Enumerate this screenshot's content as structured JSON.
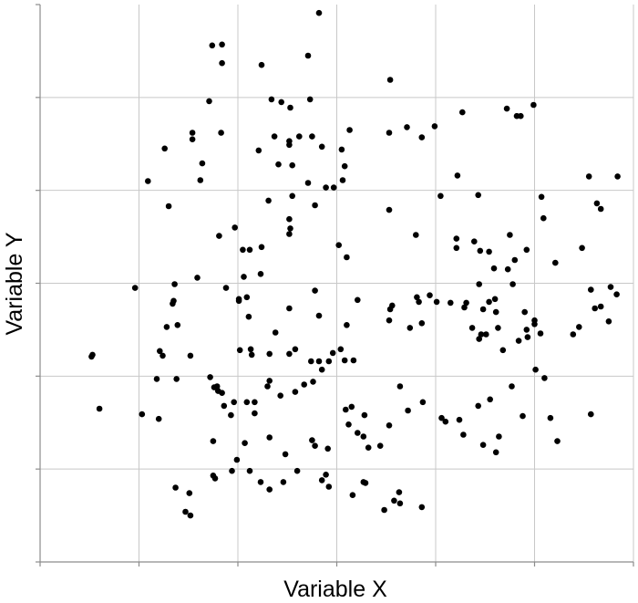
{
  "chart_data": {
    "type": "scatter",
    "title": "",
    "xlabel": "Variable X",
    "ylabel": "Variable Y",
    "xlim": [
      0,
      6
    ],
    "ylim": [
      0,
      6
    ],
    "grid": true,
    "tick_labels": false,
    "colors": {
      "point": "#000000",
      "grid": "#c8c8c8",
      "axis": "#8c8c8c"
    },
    "points": [
      [
        2.82,
        5.91
      ],
      [
        1.74,
        5.56
      ],
      [
        1.84,
        5.57
      ],
      [
        1.84,
        5.37
      ],
      [
        2.71,
        5.45
      ],
      [
        2.24,
        5.35
      ],
      [
        3.54,
        5.19
      ],
      [
        2.34,
        4.98
      ],
      [
        1.71,
        4.96
      ],
      [
        2.53,
        4.89
      ],
      [
        2.44,
        4.95
      ],
      [
        2.73,
        4.98
      ],
      [
        1.83,
        4.62
      ],
      [
        1.54,
        4.62
      ],
      [
        2.37,
        4.58
      ],
      [
        2.52,
        4.53
      ],
      [
        2.62,
        4.58
      ],
      [
        2.75,
        4.58
      ],
      [
        2.85,
        4.47
      ],
      [
        3.13,
        4.65
      ],
      [
        3.53,
        4.62
      ],
      [
        3.71,
        4.68
      ],
      [
        3.86,
        4.57
      ],
      [
        3.99,
        4.69
      ],
      [
        4.27,
        4.84
      ],
      [
        4.72,
        4.88
      ],
      [
        4.82,
        4.8
      ],
      [
        4.86,
        4.8
      ],
      [
        4.99,
        4.92
      ],
      [
        1.26,
        4.45
      ],
      [
        1.54,
        4.55
      ],
      [
        2.21,
        4.43
      ],
      [
        2.52,
        4.49
      ],
      [
        3.05,
        4.44
      ],
      [
        2.41,
        4.28
      ],
      [
        2.55,
        4.27
      ],
      [
        1.09,
        4.1
      ],
      [
        1.64,
        4.29
      ],
      [
        1.62,
        4.11
      ],
      [
        2.71,
        4.08
      ],
      [
        2.97,
        4.03
      ],
      [
        3.08,
        4.26
      ],
      [
        3.06,
        4.11
      ],
      [
        2.31,
        3.89
      ],
      [
        2.55,
        3.94
      ],
      [
        2.78,
        3.84
      ],
      [
        2.89,
        4.03
      ],
      [
        4.05,
        3.94
      ],
      [
        4.22,
        4.16
      ],
      [
        4.43,
        3.95
      ],
      [
        5.07,
        3.93
      ],
      [
        5.55,
        4.15
      ],
      [
        5.84,
        4.15
      ],
      [
        1.3,
        3.83
      ],
      [
        2.52,
        3.69
      ],
      [
        3.53,
        3.79
      ],
      [
        5.09,
        3.7
      ],
      [
        5.63,
        3.86
      ],
      [
        5.67,
        3.8
      ],
      [
        1.97,
        3.6
      ],
      [
        2.05,
        3.36
      ],
      [
        2.12,
        3.36
      ],
      [
        2.24,
        3.39
      ],
      [
        2.53,
        3.59
      ],
      [
        2.52,
        3.53
      ],
      [
        1.81,
        3.51
      ],
      [
        2.06,
        3.07
      ],
      [
        3.8,
        3.52
      ],
      [
        4.21,
        3.48
      ],
      [
        4.39,
        3.45
      ],
      [
        4.45,
        3.35
      ],
      [
        4.75,
        3.52
      ],
      [
        4.92,
        3.36
      ],
      [
        5.48,
        3.38
      ],
      [
        3.02,
        3.41
      ],
      [
        3.1,
        3.28
      ],
      [
        4.21,
        3.38
      ],
      [
        4.54,
        3.34
      ],
      [
        4.59,
        3.16
      ],
      [
        4.8,
        3.25
      ],
      [
        5.21,
        3.22
      ],
      [
        4.73,
        3.15
      ],
      [
        2.23,
        3.1
      ],
      [
        1.36,
        2.99
      ],
      [
        1.59,
        3.06
      ],
      [
        3.21,
        2.82
      ],
      [
        3.94,
        2.87
      ],
      [
        4.44,
        2.99
      ],
      [
        4.78,
        2.99
      ],
      [
        1.88,
        2.95
      ],
      [
        2.01,
        2.83
      ],
      [
        2.01,
        2.81
      ],
      [
        2.52,
        2.73
      ],
      [
        2.78,
        2.92
      ],
      [
        0.96,
        2.95
      ],
      [
        3.83,
        2.8
      ],
      [
        5.57,
        2.93
      ],
      [
        4.54,
        2.8
      ],
      [
        5.77,
        2.96
      ],
      [
        5.83,
        2.88
      ],
      [
        1.34,
        2.78
      ],
      [
        4.61,
        2.69
      ],
      [
        4.31,
        2.79
      ],
      [
        3.54,
        2.72
      ],
      [
        4.29,
        2.74
      ],
      [
        4.48,
        2.72
      ],
      [
        5.61,
        2.73
      ],
      [
        5.67,
        2.75
      ],
      [
        5.0,
        2.6
      ],
      [
        3.81,
        2.85
      ],
      [
        3.56,
        2.76
      ],
      [
        4.01,
        2.8
      ],
      [
        4.9,
        2.69
      ],
      [
        1.28,
        2.53
      ],
      [
        1.39,
        2.55
      ],
      [
        2.11,
        2.64
      ],
      [
        2.82,
        2.65
      ],
      [
        3.1,
        2.55
      ],
      [
        4.6,
        2.83
      ],
      [
        4.15,
        2.79
      ],
      [
        3.86,
        2.57
      ],
      [
        3.53,
        2.6
      ],
      [
        3.74,
        2.52
      ],
      [
        2.02,
        2.28
      ],
      [
        1.35,
        2.81
      ],
      [
        2.09,
        2.85
      ],
      [
        2.13,
        2.29
      ],
      [
        2.38,
        2.47
      ],
      [
        4.37,
        2.52
      ],
      [
        4.51,
        2.45
      ],
      [
        4.46,
        2.45
      ],
      [
        4.44,
        2.4
      ],
      [
        4.63,
        2.52
      ],
      [
        4.84,
        2.38
      ],
      [
        4.93,
        2.42
      ],
      [
        5.0,
        2.56
      ],
      [
        5.06,
        2.46
      ],
      [
        5.39,
        2.45
      ],
      [
        5.45,
        2.53
      ],
      [
        5.75,
        2.59
      ],
      [
        0.53,
        2.23
      ],
      [
        1.21,
        2.27
      ],
      [
        1.24,
        2.22
      ],
      [
        1.52,
        2.22
      ],
      [
        2.14,
        2.23
      ],
      [
        2.32,
        2.24
      ],
      [
        2.52,
        2.24
      ],
      [
        2.58,
        2.29
      ],
      [
        2.74,
        2.16
      ],
      [
        2.82,
        2.16
      ],
      [
        2.92,
        2.16
      ],
      [
        2.96,
        2.25
      ],
      [
        3.04,
        2.29
      ],
      [
        3.08,
        2.17
      ],
      [
        3.17,
        2.17
      ],
      [
        0.52,
        2.21
      ],
      [
        4.68,
        2.28
      ],
      [
        4.92,
        2.5
      ],
      [
        0.6,
        1.65
      ],
      [
        1.2,
        1.54
      ],
      [
        1.8,
        1.84
      ],
      [
        2.3,
        1.89
      ],
      [
        1.18,
        1.97
      ],
      [
        1.93,
        1.58
      ],
      [
        2.09,
        1.72
      ],
      [
        2.17,
        1.72
      ],
      [
        2.32,
        1.95
      ],
      [
        2.43,
        1.79
      ],
      [
        2.58,
        1.83
      ],
      [
        3.28,
        1.58
      ],
      [
        2.67,
        1.91
      ],
      [
        1.76,
        1.88
      ],
      [
        1.79,
        1.89
      ],
      [
        1.03,
        1.59
      ],
      [
        1.38,
        1.97
      ],
      [
        1.72,
        1.99
      ],
      [
        1.86,
        1.68
      ],
      [
        1.96,
        1.72
      ],
      [
        2.17,
        1.6
      ],
      [
        1.84,
        1.82
      ],
      [
        2.85,
        2.07
      ],
      [
        3.64,
        1.89
      ],
      [
        2.76,
        1.94
      ],
      [
        3.15,
        1.67
      ],
      [
        3.09,
        1.64
      ],
      [
        3.12,
        1.48
      ],
      [
        3.21,
        1.39
      ],
      [
        3.53,
        1.47
      ],
      [
        3.72,
        1.63
      ],
      [
        3.87,
        1.72
      ],
      [
        4.06,
        1.55
      ],
      [
        4.28,
        1.37
      ],
      [
        4.43,
        1.68
      ],
      [
        4.55,
        1.75
      ],
      [
        4.77,
        1.89
      ],
      [
        5.01,
        2.07
      ],
      [
        5.16,
        1.55
      ],
      [
        5.1,
        1.98
      ],
      [
        1.75,
        1.3
      ],
      [
        2.07,
        1.28
      ],
      [
        2.32,
        1.34
      ],
      [
        2.48,
        1.16
      ],
      [
        2.75,
        1.31
      ],
      [
        2.78,
        1.25
      ],
      [
        2.91,
        1.22
      ],
      [
        3.27,
        1.35
      ],
      [
        3.32,
        1.23
      ],
      [
        3.44,
        1.25
      ],
      [
        4.1,
        1.51
      ],
      [
        4.24,
        1.53
      ],
      [
        4.48,
        1.26
      ],
      [
        4.61,
        1.18
      ],
      [
        4.64,
        1.35
      ],
      [
        5.23,
        1.3
      ],
      [
        5.57,
        1.59
      ],
      [
        4.88,
        1.57
      ],
      [
        1.75,
        0.93
      ],
      [
        1.99,
        1.1
      ],
      [
        2.12,
        0.98
      ],
      [
        2.32,
        0.78
      ],
      [
        2.6,
        0.98
      ],
      [
        2.85,
        0.88
      ],
      [
        2.89,
        0.94
      ],
      [
        3.16,
        0.72
      ],
      [
        3.29,
        0.85
      ],
      [
        3.58,
        0.66
      ],
      [
        1.37,
        0.8
      ],
      [
        1.51,
        0.74
      ],
      [
        1.94,
        0.98
      ],
      [
        2.23,
        0.86
      ],
      [
        2.92,
        0.81
      ],
      [
        3.27,
        0.86
      ],
      [
        3.64,
        0.63
      ],
      [
        3.86,
        0.59
      ],
      [
        1.77,
        0.9
      ],
      [
        1.47,
        0.54
      ],
      [
        1.52,
        0.5
      ],
      [
        2.46,
        0.86
      ],
      [
        3.48,
        0.56
      ],
      [
        3.63,
        0.75
      ]
    ]
  }
}
